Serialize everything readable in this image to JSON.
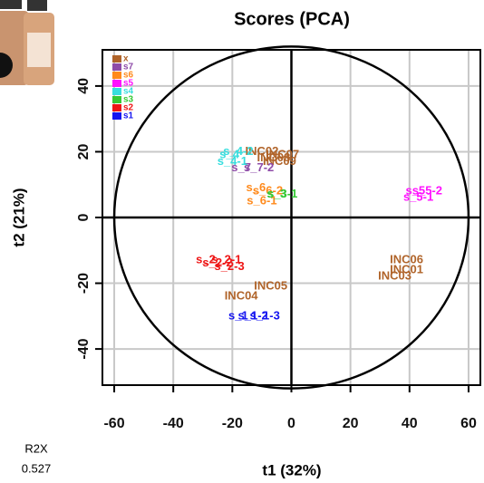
{
  "chart_data": {
    "type": "scatter",
    "title": "Scores (PCA)",
    "x_label": "t1 (32%)",
    "y_label": "t2 (21%)",
    "xlim": [
      -64,
      64
    ],
    "ylim": [
      -51,
      51
    ],
    "xticks": [
      -60,
      -40,
      -20,
      0,
      20,
      40,
      60
    ],
    "yticks": [
      -40,
      -20,
      0,
      20,
      40
    ],
    "grid": true,
    "ellipse": {
      "rx": 60,
      "ry": 52
    },
    "legend": "top-left",
    "series": [
      {
        "name": "x",
        "color": "#b0642a",
        "x": [
          -10,
          -3,
          -6,
          -4,
          39,
          39,
          35,
          -7,
          -17
        ],
        "y": [
          20,
          19,
          18,
          17,
          -13,
          -16,
          -18,
          -21,
          -24
        ],
        "labels": [
          "INC02",
          "INC07",
          "INC08",
          "INC09",
          "INC06",
          "INC01",
          "INC03",
          "INC05",
          "INC04"
        ]
      },
      {
        "name": "s7",
        "color": "#8e4ba8",
        "x": [
          -17,
          -11
        ],
        "y": [
          15,
          15
        ],
        "labels": [
          "s_7",
          "s_7-2"
        ]
      },
      {
        "name": "s6",
        "color": "#ff8a1c",
        "x": [
          -12,
          -8,
          -10
        ],
        "y": [
          9,
          8,
          5
        ],
        "labels": [
          "s_6",
          "s_6-2",
          "s_6-1"
        ]
      },
      {
        "name": "s5",
        "color": "#ff10ff",
        "x": [
          42,
          46,
          43
        ],
        "y": [
          8,
          8,
          6
        ],
        "labels": [
          "s_5",
          "s_5-2",
          "s_5-1"
        ]
      },
      {
        "name": "s4",
        "color": "#38dede",
        "x": [
          -21,
          -18,
          -20
        ],
        "y": [
          19,
          20,
          17
        ],
        "labels": [
          "s_4",
          "s_4-2",
          "s_4-1"
        ]
      },
      {
        "name": "s3",
        "color": "#36c936",
        "x": [
          -5,
          -3
        ],
        "y": [
          7,
          7
        ],
        "labels": [
          "s_3",
          "s_3-1"
        ]
      },
      {
        "name": "s2",
        "color": "#ee1515",
        "x": [
          -29,
          -25,
          -22,
          -21
        ],
        "y": [
          -13,
          -14,
          -13,
          -15
        ],
        "labels": [
          "s_2",
          "s_2-2",
          "s_2-1",
          "s_2-3"
        ]
      },
      {
        "name": "s1",
        "color": "#1414f0",
        "x": [
          -18,
          -13,
          -9
        ],
        "y": [
          -30,
          -30,
          -30
        ],
        "labels": [
          "s_1",
          "s_1-2",
          "s_1-3"
        ]
      }
    ],
    "footer": {
      "label": "R2X",
      "value": "0.527"
    }
  }
}
